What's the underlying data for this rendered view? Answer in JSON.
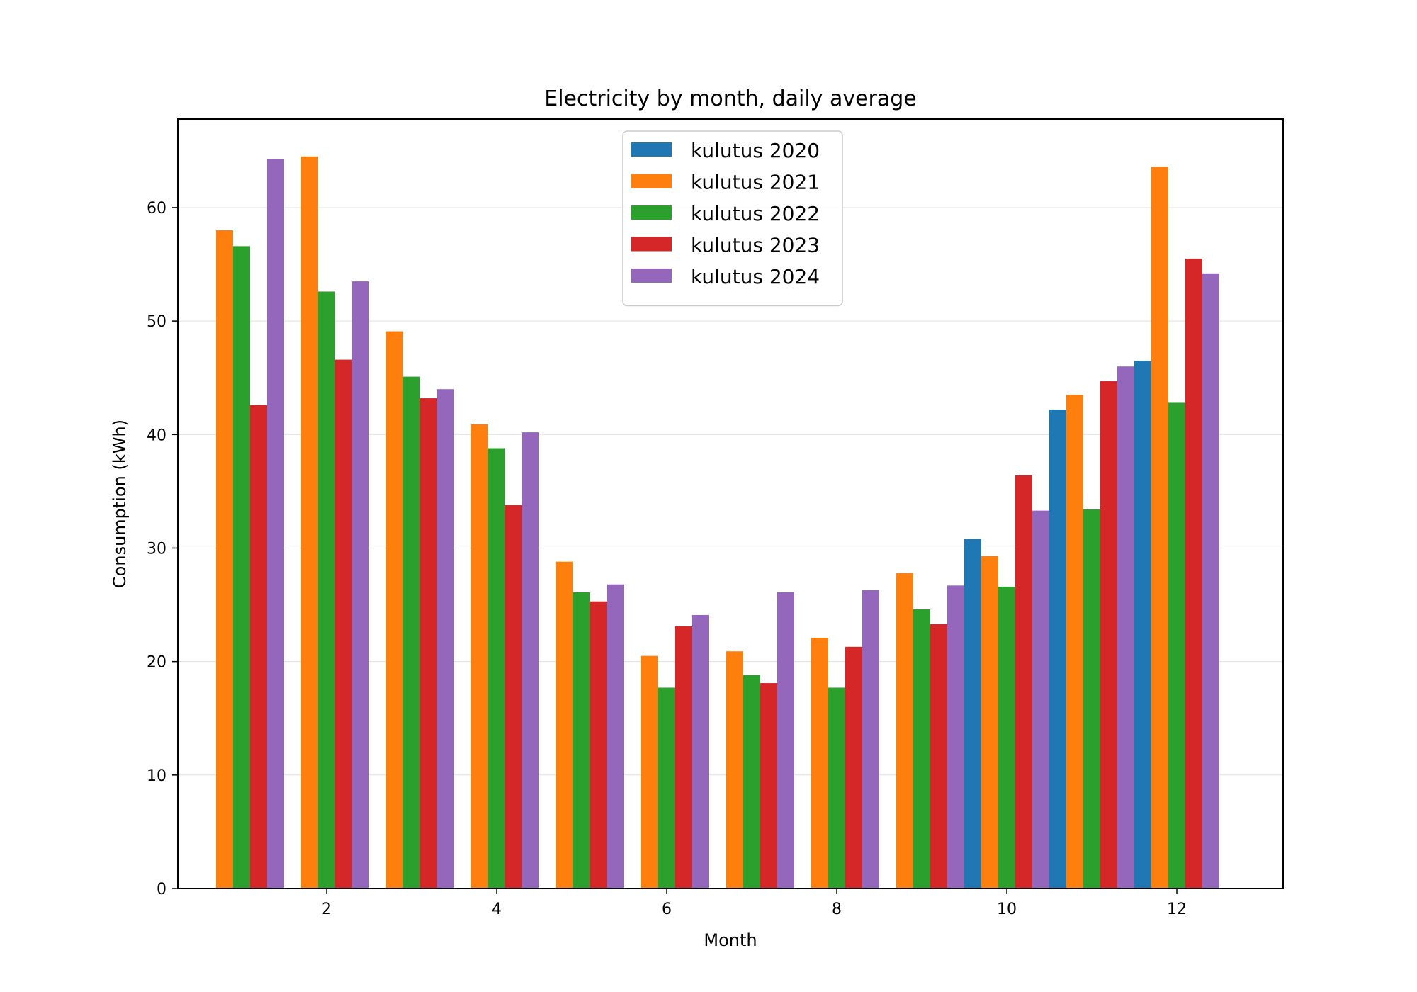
{
  "chart_data": {
    "type": "bar",
    "title": "Electricity by month, daily average",
    "xlabel": "Month",
    "ylabel": "Consumption (kWh)",
    "x": [
      1,
      2,
      3,
      4,
      5,
      6,
      7,
      8,
      9,
      10,
      11,
      12
    ],
    "xticks": [
      2,
      4,
      6,
      8,
      10,
      12
    ],
    "yticks": [
      0,
      10,
      20,
      30,
      40,
      50,
      60
    ],
    "xlim": [
      0.25,
      13.25
    ],
    "ylim": [
      0,
      67.8
    ],
    "grid": "y",
    "legend_position": "top-center",
    "series": [
      {
        "name": "kulutus 2020",
        "color": "#1f77b4",
        "values": [
          null,
          null,
          null,
          null,
          null,
          null,
          null,
          null,
          null,
          30.8,
          42.2,
          46.5
        ]
      },
      {
        "name": "kulutus 2021",
        "color": "#ff7f0e",
        "values": [
          58.0,
          64.5,
          49.1,
          40.9,
          28.8,
          20.5,
          20.9,
          22.1,
          27.8,
          29.3,
          43.5,
          63.6
        ]
      },
      {
        "name": "kulutus 2022",
        "color": "#2ca02c",
        "values": [
          56.6,
          52.6,
          45.1,
          38.8,
          26.1,
          17.7,
          18.8,
          17.7,
          24.6,
          26.6,
          33.4,
          42.8
        ]
      },
      {
        "name": "kulutus 2023",
        "color": "#d62728",
        "values": [
          42.6,
          46.6,
          43.2,
          33.8,
          25.3,
          23.1,
          18.1,
          21.3,
          23.3,
          36.4,
          44.7,
          55.5
        ]
      },
      {
        "name": "kulutus 2024",
        "color": "#9467bd",
        "values": [
          64.3,
          53.5,
          44.0,
          40.2,
          26.8,
          24.1,
          26.1,
          26.3,
          26.7,
          33.3,
          46.0,
          54.2
        ]
      }
    ]
  }
}
